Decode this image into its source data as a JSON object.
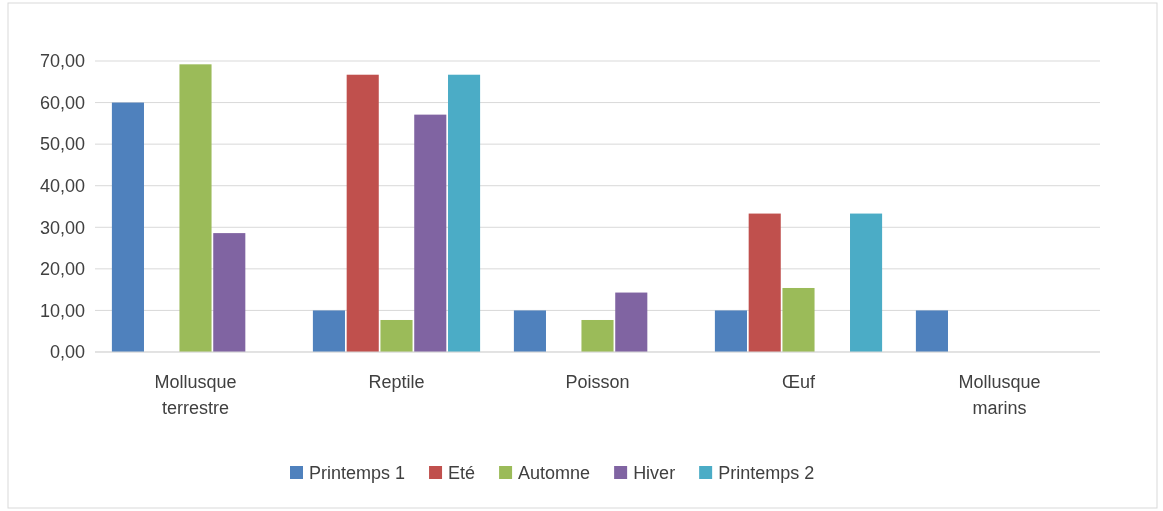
{
  "chart_data": {
    "type": "bar",
    "categories": [
      "Mollusque terrestre",
      "Reptile",
      "Poisson",
      "Œuf",
      "Mollusque marins"
    ],
    "series": [
      {
        "name": "Printemps 1",
        "color": "#4f81bd",
        "values": [
          60,
          10,
          10,
          10,
          10
        ]
      },
      {
        "name": "Eté",
        "color": "#c0504d",
        "values": [
          0,
          66.7,
          0,
          33.3,
          0
        ]
      },
      {
        "name": "Automne",
        "color": "#9bbb59",
        "values": [
          69.2,
          7.7,
          7.7,
          15.4,
          0
        ]
      },
      {
        "name": "Hiver",
        "color": "#8064a2",
        "values": [
          28.6,
          57.1,
          14.3,
          0,
          0
        ]
      },
      {
        "name": "Printemps 2",
        "color": "#4bacc6",
        "values": [
          0,
          66.7,
          0,
          33.3,
          0
        ]
      }
    ],
    "ylim": [
      0,
      70
    ],
    "yticks": [
      {
        "value": 0,
        "label": "0,00"
      },
      {
        "value": 10,
        "label": "10,00"
      },
      {
        "value": 20,
        "label": "20,00"
      },
      {
        "value": 30,
        "label": "30,00"
      },
      {
        "value": 40,
        "label": "40,00"
      },
      {
        "value": 50,
        "label": "50,00"
      },
      {
        "value": 60,
        "label": "60,00"
      },
      {
        "value": 70,
        "label": "70,00"
      }
    ],
    "grid": "y",
    "legend": "bottom"
  }
}
